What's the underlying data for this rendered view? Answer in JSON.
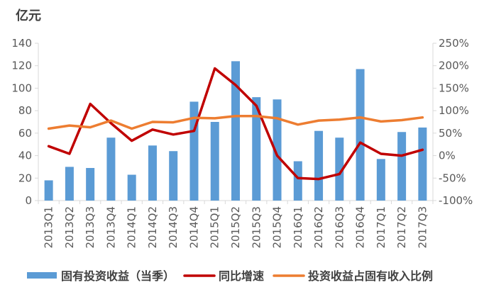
{
  "chart_data": {
    "type": "bar+line",
    "unit_label": "亿元",
    "categories": [
      "2013Q1",
      "2013Q2",
      "2013Q3",
      "2013Q4",
      "2014Q1",
      "2014Q2",
      "2014Q3",
      "2014Q4",
      "2015Q1",
      "2015Q2",
      "2015Q3",
      "2015Q4",
      "2016Q1",
      "2016Q2",
      "2016Q3",
      "2016Q4",
      "2017Q1",
      "2017Q2",
      "2017Q3"
    ],
    "left_axis": {
      "ylim": [
        0,
        140
      ],
      "ticks": [
        "0",
        "20",
        "40",
        "60",
        "80",
        "100",
        "120",
        "140"
      ]
    },
    "right_axis": {
      "ylim": [
        -100,
        250
      ],
      "ticks": [
        "-100%",
        "-50%",
        "0%",
        "50%",
        "100%",
        "150%",
        "200%",
        "250%"
      ]
    },
    "series": [
      {
        "name": "固有投资收益（当季）",
        "type": "bar",
        "axis": "left",
        "color": "#5b9bd5",
        "values": [
          18,
          30,
          29,
          56,
          23,
          49,
          44,
          88,
          70,
          124,
          92,
          90,
          35,
          62,
          56,
          117,
          37,
          61,
          65
        ]
      },
      {
        "name": "同比增速",
        "type": "line",
        "axis": "right",
        "color": "#c00000",
        "values": [
          21,
          4,
          115,
          72,
          33,
          58,
          47,
          55,
          194,
          157,
          111,
          0,
          -50,
          -52,
          -41,
          29,
          4,
          0,
          13
        ]
      },
      {
        "name": "投资收益占固有收入比例",
        "type": "line",
        "axis": "right",
        "color": "#ed7d31",
        "values": [
          60,
          67,
          63,
          78,
          60,
          75,
          74,
          84,
          83,
          88,
          88,
          83,
          69,
          78,
          80,
          85,
          76,
          79,
          85
        ]
      }
    ],
    "grid": false,
    "legend_position": "bottom"
  },
  "colors": {
    "axis": "#d9d9d9",
    "text": "#595959"
  }
}
